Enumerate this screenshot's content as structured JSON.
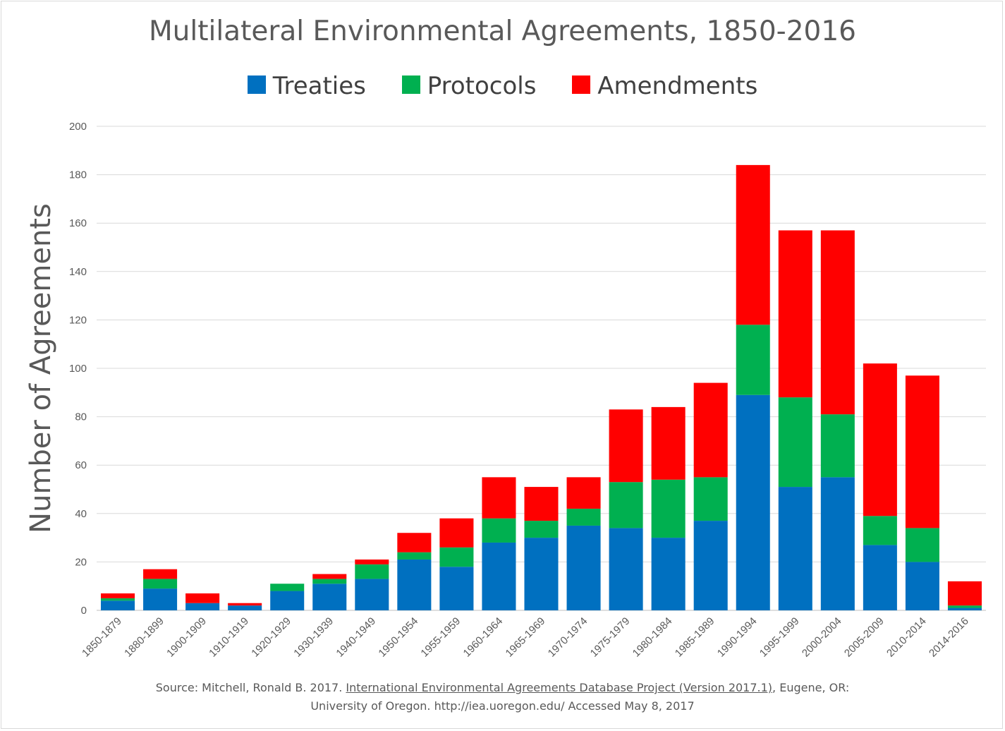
{
  "chart_data": {
    "type": "bar",
    "stacked": true,
    "title": "Multilateral Environmental Agreements, 1850-2016",
    "xlabel": "",
    "ylabel": "Number of Agreements",
    "ylim": [
      0,
      200
    ],
    "yticks": [
      0,
      20,
      40,
      60,
      80,
      100,
      120,
      140,
      160,
      180,
      200
    ],
    "grid": true,
    "legend": "top",
    "categories": [
      "1850-1879",
      "1880-1899",
      "1900-1909",
      "1910-1919",
      "1920-1929",
      "1930-1939",
      "1940-1949",
      "1950-1954",
      "1955-1959",
      "1960-1964",
      "1965-1969",
      "1970-1974",
      "1975-1979",
      "1980-1984",
      "1985-1989",
      "1990-1994",
      "1995-1999",
      "2000-2004",
      "2005-2009",
      "2010-2014",
      "2014-2016"
    ],
    "series": [
      {
        "name": "Treaties",
        "color": "#0070c0",
        "values": [
          4,
          9,
          3,
          2,
          8,
          11,
          13,
          21,
          18,
          28,
          30,
          35,
          34,
          30,
          37,
          89,
          51,
          55,
          27,
          20,
          1
        ]
      },
      {
        "name": "Protocols",
        "color": "#00b050",
        "values": [
          1,
          4,
          0,
          0,
          3,
          2,
          6,
          3,
          8,
          10,
          7,
          7,
          19,
          24,
          18,
          29,
          37,
          26,
          12,
          14,
          1
        ]
      },
      {
        "name": "Amendments",
        "color": "#ff0000",
        "values": [
          2,
          4,
          4,
          1,
          0,
          2,
          2,
          8,
          12,
          17,
          14,
          13,
          30,
          30,
          39,
          66,
          69,
          76,
          63,
          63,
          10
        ]
      }
    ]
  },
  "source": {
    "prefix": "Source: Mitchell, Ronald B. 2017. ",
    "link_text": "International Environmental Agreements Database Project (Version 2017.1)",
    "suffix": ", Eugene, OR:",
    "line2": "University of Oregon. http://iea.uoregon.edu/ Accessed May 8, 2017"
  }
}
